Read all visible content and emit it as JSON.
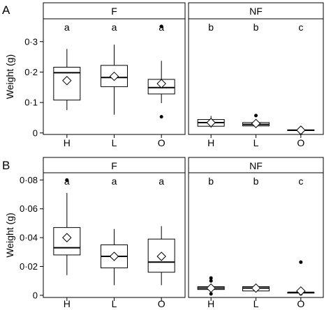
{
  "chart_data": [
    {
      "type": "box",
      "panel_label": "A",
      "ylabel": "Weight (g)",
      "yticks": [
        0,
        0.1,
        0.2,
        0.3
      ],
      "ytick_labels": [
        "0",
        "0·1",
        "0·2",
        "0·3"
      ],
      "ylim": [
        -0.005,
        0.375
      ],
      "categories": [
        "H",
        "L",
        "O"
      ],
      "facets": [
        {
          "strip": "F",
          "boxes": [
            {
              "category": "H",
              "min": 0.075,
              "q1": 0.108,
              "median": 0.198,
              "q3": 0.216,
              "max": 0.276,
              "mean": 0.172,
              "outliers": [],
              "letter": "a"
            },
            {
              "category": "L",
              "min": 0.06,
              "q1": 0.152,
              "median": 0.182,
              "q3": 0.222,
              "max": 0.29,
              "mean": 0.186,
              "outliers": [],
              "letter": "a"
            },
            {
              "category": "O",
              "min": 0.098,
              "q1": 0.128,
              "median": 0.149,
              "q3": 0.176,
              "max": 0.237,
              "mean": 0.162,
              "outliers": [
                0.053,
                0.35
              ],
              "letter": "a"
            }
          ]
        },
        {
          "strip": "NF",
          "boxes": [
            {
              "category": "H",
              "min": 0.017,
              "q1": 0.022,
              "median": 0.034,
              "q3": 0.044,
              "max": 0.056,
              "mean": 0.034,
              "outliers": [],
              "letter": "b"
            },
            {
              "category": "L",
              "min": 0.02,
              "q1": 0.023,
              "median": 0.028,
              "q3": 0.034,
              "max": 0.045,
              "mean": 0.031,
              "outliers": [
                0.057
              ],
              "letter": "b"
            },
            {
              "category": "O",
              "min": 0.004,
              "q1": 0.009,
              "median": 0.009,
              "q3": 0.01,
              "max": 0.012,
              "mean": 0.009,
              "outliers": [
                0.001,
                0.016
              ],
              "letter": "c"
            }
          ]
        }
      ]
    },
    {
      "type": "box",
      "panel_label": "B",
      "ylabel": "Weight (g)",
      "yticks": [
        0,
        0.02,
        0.04,
        0.06,
        0.08
      ],
      "ytick_labels": [
        "0",
        "0·02",
        "0·04",
        "0·06",
        "0·08"
      ],
      "ylim": [
        -0.0015,
        0.085
      ],
      "categories": [
        "H",
        "L",
        "O"
      ],
      "facets": [
        {
          "strip": "F",
          "boxes": [
            {
              "category": "H",
              "min": 0.014,
              "q1": 0.028,
              "median": 0.033,
              "q3": 0.047,
              "max": 0.071,
              "mean": 0.04,
              "outliers": [
                0.08
              ],
              "letter": "a"
            },
            {
              "category": "L",
              "min": 0.007,
              "q1": 0.019,
              "median": 0.027,
              "q3": 0.035,
              "max": 0.046,
              "mean": 0.027,
              "outliers": [],
              "letter": "a"
            },
            {
              "category": "O",
              "min": 0.007,
              "q1": 0.016,
              "median": 0.023,
              "q3": 0.039,
              "max": 0.048,
              "mean": 0.027,
              "outliers": [],
              "letter": "a"
            }
          ]
        },
        {
          "strip": "NF",
          "boxes": [
            {
              "category": "H",
              "min": 0.002,
              "q1": 0.004,
              "median": 0.005,
              "q3": 0.006,
              "max": 0.008,
              "mean": 0.005,
              "outliers": [
                0.001,
                0.01,
                0.012
              ],
              "letter": "b"
            },
            {
              "category": "L",
              "min": 0.002,
              "q1": 0.003,
              "median": 0.005,
              "q3": 0.006,
              "max": 0.008,
              "mean": 0.005,
              "outliers": [],
              "letter": "b"
            },
            {
              "category": "O",
              "min": 0.001,
              "q1": 0.002,
              "median": 0.002,
              "q3": 0.002,
              "max": 0.004,
              "mean": 0.003,
              "outliers": [
                0.001,
                0.023
              ],
              "letter": "c"
            }
          ]
        }
      ]
    }
  ]
}
